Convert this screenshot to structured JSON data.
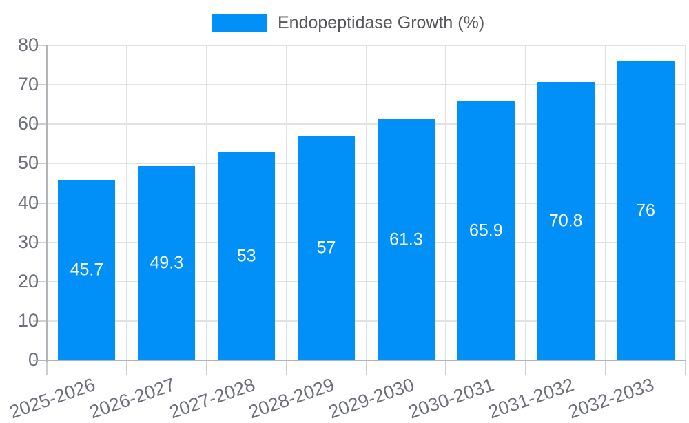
{
  "legend": {
    "label": "Endopeptidase Growth (%)"
  },
  "chart_data": {
    "type": "bar",
    "title": "",
    "categories": [
      "2025-2026",
      "2026-2027",
      "2027-2028",
      "2028-2029",
      "2029-2030",
      "2030-2031",
      "2031-2032",
      "2032-2033"
    ],
    "series": [
      {
        "name": "Endopeptidase Growth (%)",
        "values": [
          45.7,
          49.3,
          53,
          57,
          61.3,
          65.9,
          70.8,
          76
        ]
      }
    ],
    "value_labels": [
      "45.7",
      "49.3",
      "53",
      "57",
      "61.3",
      "65.9",
      "70.8",
      "76"
    ],
    "xlabel": "",
    "ylabel": "",
    "ylim": [
      0,
      80
    ],
    "yticks": [
      0,
      10,
      20,
      30,
      40,
      50,
      60,
      70,
      80
    ],
    "grid": true,
    "legend_position": "top-center"
  },
  "colors": {
    "bar": "#0090f7",
    "grid": "#e0e2e7",
    "tick": "#cfcfcf",
    "axis": "#b1b4b8",
    "tick_label": "#6e7079",
    "legend_text": "#55575a",
    "value_label": "#ffffff",
    "background": "#ffffff"
  }
}
